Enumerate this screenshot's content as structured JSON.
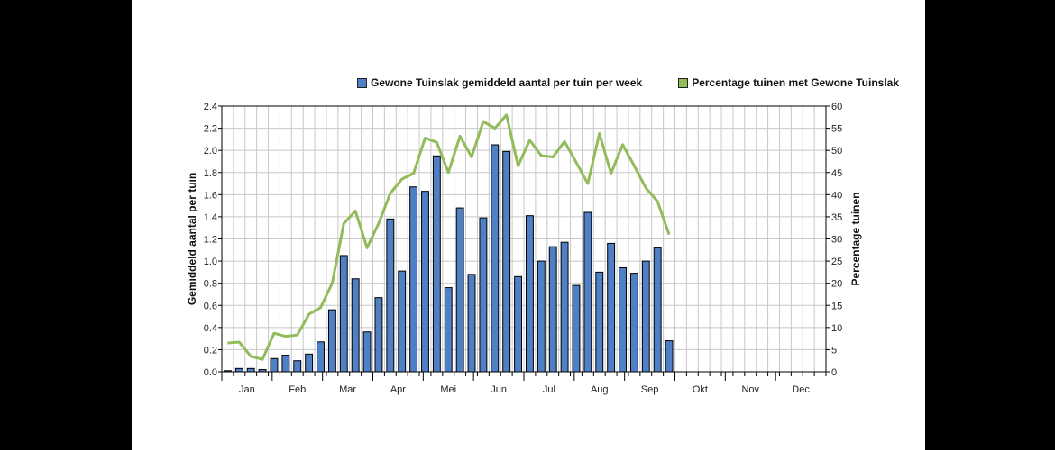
{
  "colors": {
    "bar": "#4f7fc4",
    "line": "#92bb5a",
    "grid": "#c8c8c8",
    "axis": "#000000"
  },
  "chart_data": {
    "type": "bar+line",
    "legend": [
      "Gewone Tuinslak gemiddeld aantal per tuin per week",
      "Percentage tuinen met Gewone Tuinslak"
    ],
    "legend_position": "top",
    "ylabel_left": "Gemiddeld aantal per tuin",
    "ylabel_right": "Percentage tuinen",
    "ylim_left": [
      0,
      2.4
    ],
    "ylim_right": [
      0,
      60
    ],
    "yticks_left": [
      "0.0",
      "0.2",
      "0.4",
      "0.6",
      "0.8",
      "1.0",
      "1.2",
      "1.4",
      "1.6",
      "1.8",
      "2.0",
      "2.2",
      "2.4"
    ],
    "yticks_right": [
      "0",
      "5",
      "10",
      "15",
      "20",
      "25",
      "30",
      "35",
      "40",
      "45",
      "50",
      "55",
      "60"
    ],
    "months": [
      "Jan",
      "Feb",
      "Mar",
      "Apr",
      "Mei",
      "Jun",
      "Jul",
      "Aug",
      "Sep",
      "Okt",
      "Nov",
      "Dec"
    ],
    "weeks": 52,
    "grid": true,
    "series": [
      {
        "name": "Gewone Tuinslak gemiddeld aantal per tuin per week",
        "type": "bar",
        "values": [
          0.01,
          0.03,
          0.03,
          0.02,
          0.12,
          0.15,
          0.1,
          0.16,
          0.27,
          0.56,
          1.05,
          0.84,
          0.36,
          0.67,
          1.38,
          0.91,
          1.67,
          1.63,
          1.95,
          0.76,
          1.48,
          0.88,
          1.39,
          2.05,
          1.99,
          0.86,
          1.41,
          1.0,
          1.13,
          1.17,
          0.78,
          1.44,
          0.9,
          1.16,
          0.94,
          0.89,
          1.0,
          1.12,
          0.28
        ]
      },
      {
        "name": "Percentage tuinen met Gewone Tuinslak",
        "type": "line",
        "values": [
          6.5,
          6.7,
          3.5,
          2.8,
          8.7,
          8.0,
          8.3,
          13,
          14.5,
          20,
          33.5,
          36.3,
          28,
          33.5,
          40.3,
          43.5,
          44.8,
          52.8,
          51.8,
          45,
          53.2,
          48.5,
          56.5,
          55,
          58,
          46.5,
          52.3,
          48.8,
          48.5,
          52,
          47.3,
          42.5,
          53.8,
          44.8,
          51.3,
          46.5,
          41.5,
          38.5,
          31
        ]
      }
    ]
  }
}
